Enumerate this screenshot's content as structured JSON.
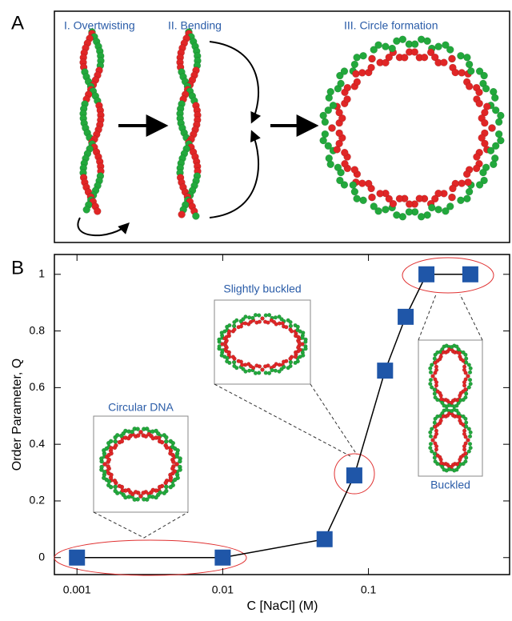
{
  "panel_a": {
    "label": "A",
    "steps": [
      "I. Overtwisting",
      "II. Bending",
      "III. Circle  formation"
    ]
  },
  "panel_b": {
    "label": "B"
  },
  "chart_data": {
    "type": "line",
    "x_label": "C [NaCl] (M)",
    "y_label": "Order Parameter, Q",
    "x": [
      0.001,
      0.01,
      0.05,
      0.08,
      0.13,
      0.18,
      0.25,
      0.5
    ],
    "values": [
      0,
      0,
      0.065,
      0.29,
      0.66,
      0.85,
      1.0,
      1.0
    ],
    "color": "#1f56a8",
    "line_color": "#000000",
    "xlim": [
      0.0007,
      0.93
    ],
    "ylim": [
      -0.06,
      1.07
    ],
    "x_log": true,
    "xticks": [
      0.001,
      0.01,
      0.1
    ],
    "yticks": [
      0,
      0.2,
      0.4,
      0.6,
      0.8,
      1
    ],
    "annotations": [
      "Circular DNA",
      "Slightly buckled",
      "Buckled"
    ]
  }
}
